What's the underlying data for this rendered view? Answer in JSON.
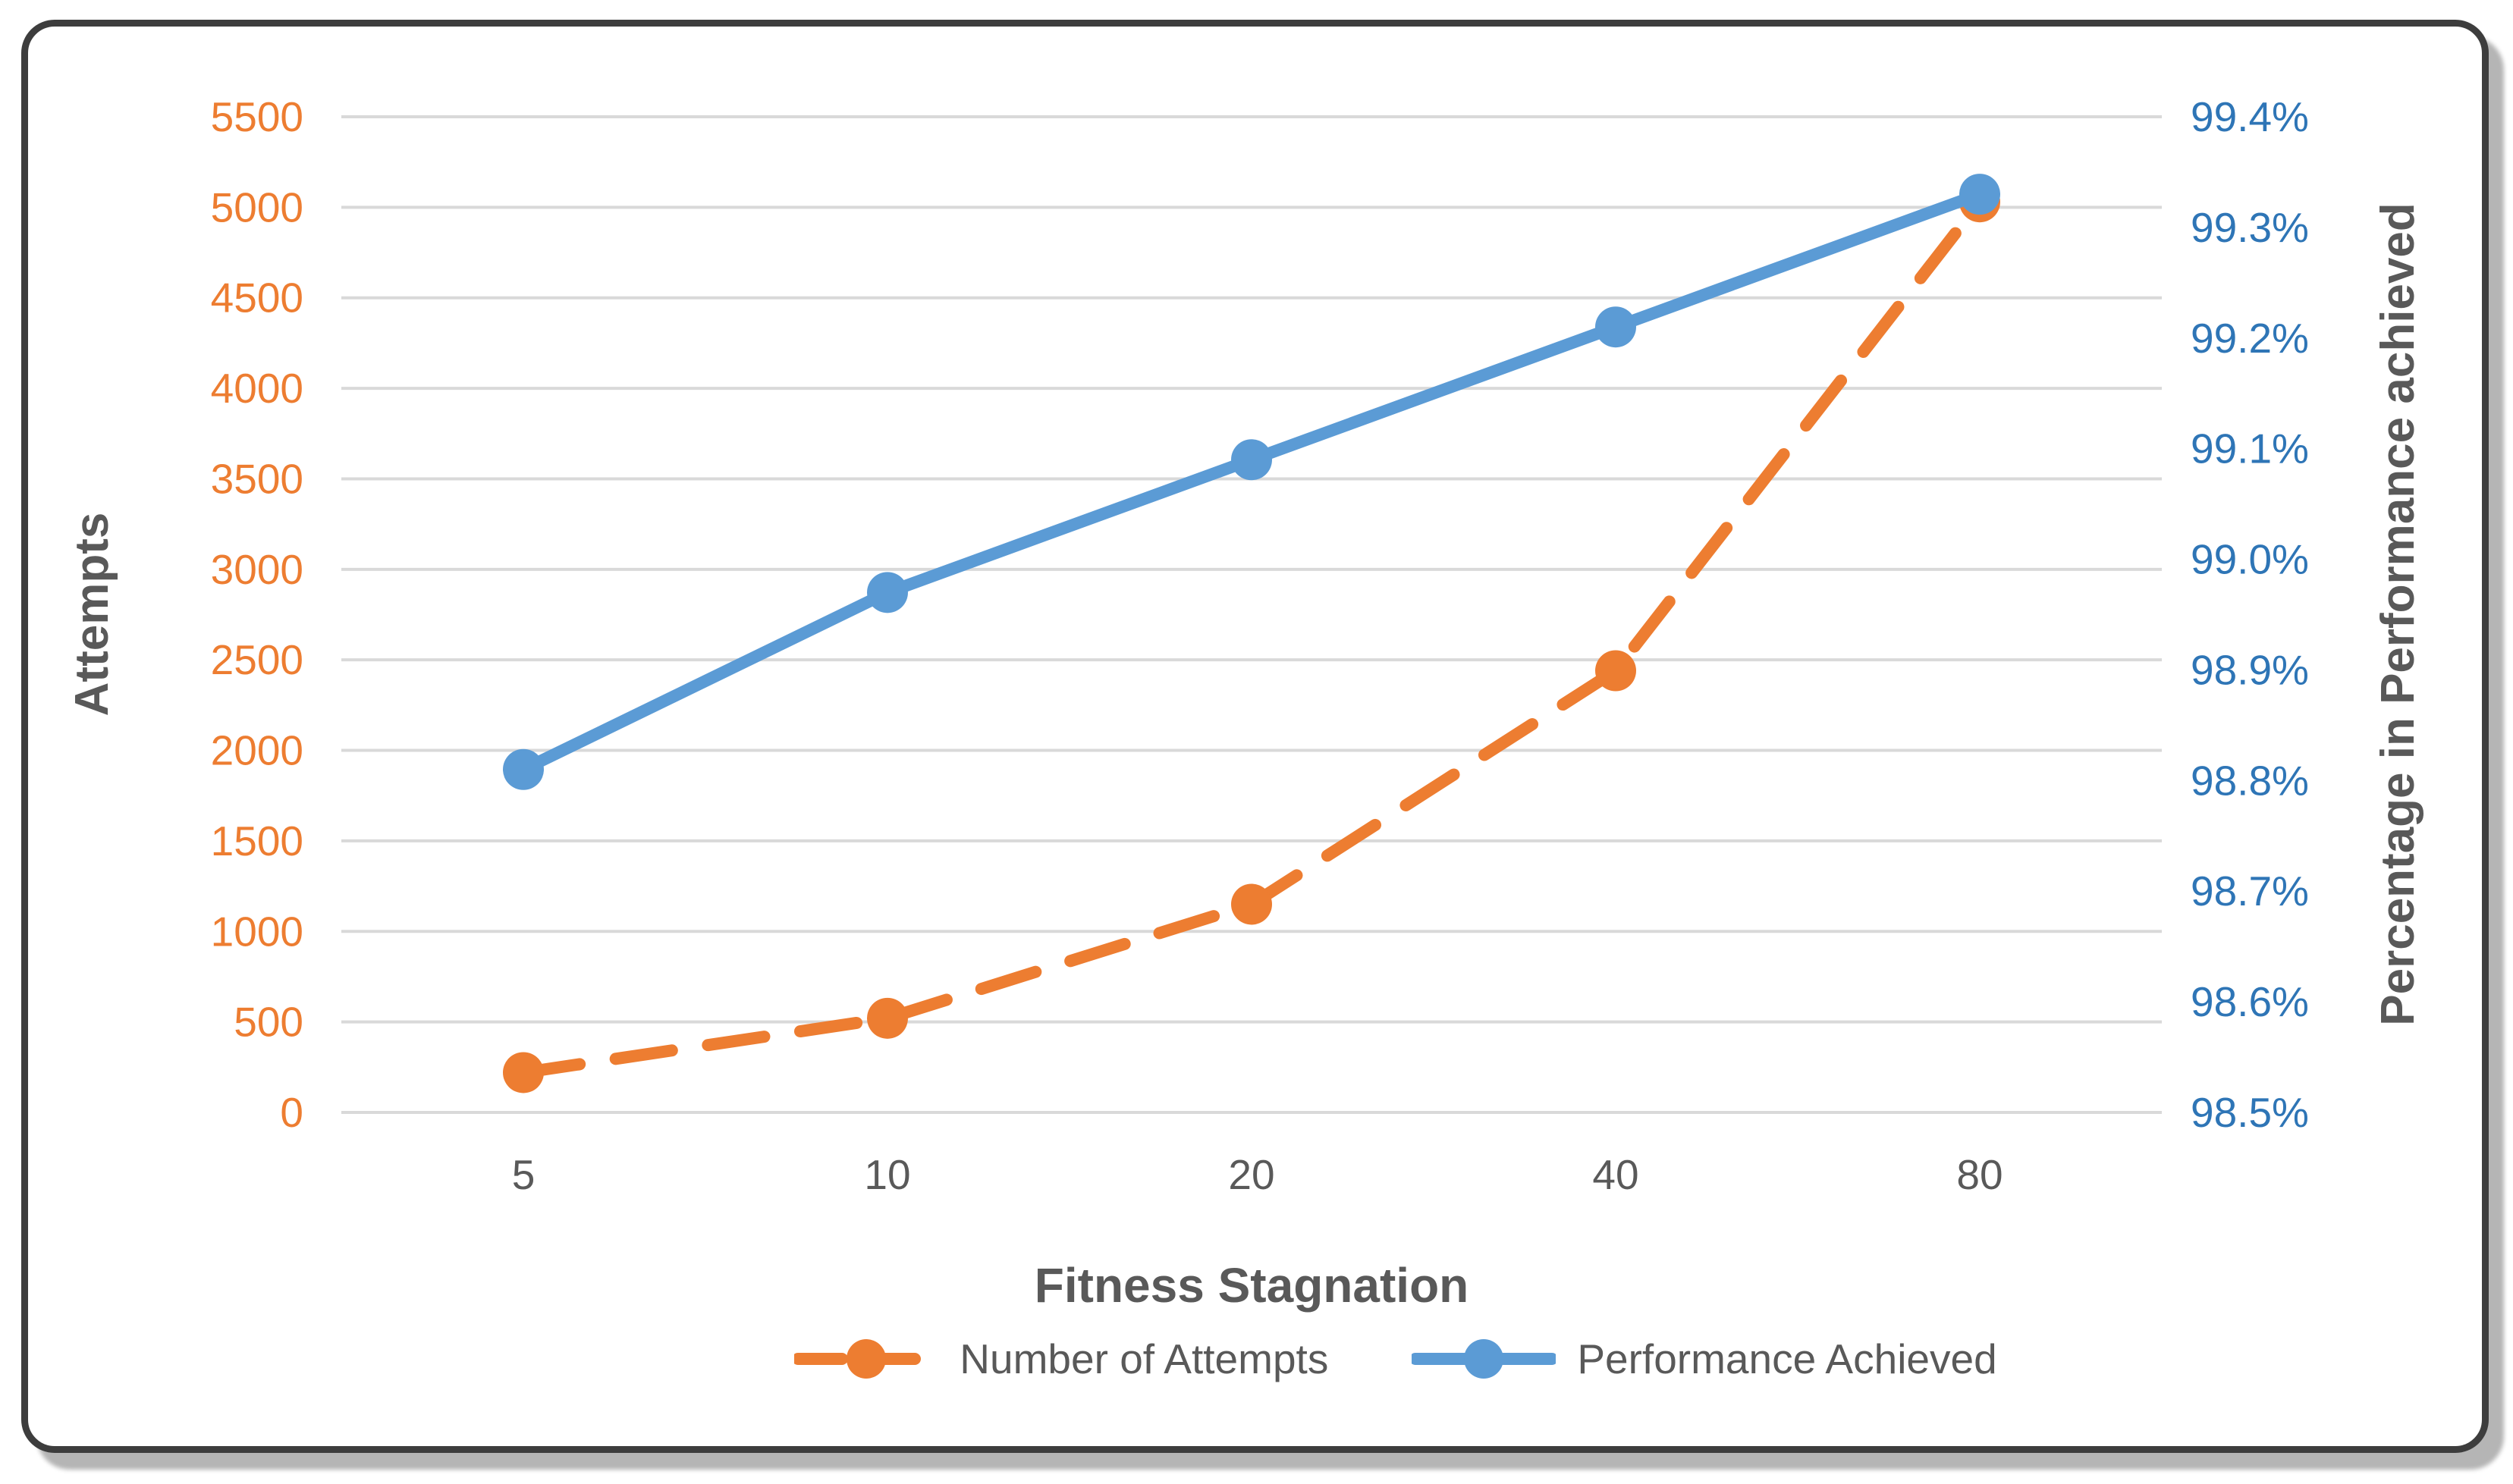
{
  "chart_data": {
    "type": "line",
    "x_categories": [
      "5",
      "10",
      "20",
      "40",
      "80"
    ],
    "xlabel": "Fitness Stagnation",
    "left_axis": {
      "label": "Attempts",
      "min": 0,
      "max": 5500,
      "step": 500,
      "tick_labels": [
        "0",
        "500",
        "1000",
        "1500",
        "2000",
        "2500",
        "3000",
        "3500",
        "4000",
        "4500",
        "5000",
        "5500"
      ],
      "tick_color": "#ED7D31"
    },
    "right_axis": {
      "label": "Percentage in Performance achieved",
      "min": 98.5,
      "max": 99.4,
      "step": 0.1,
      "tick_labels": [
        "98.5%",
        "98.6%",
        "98.7%",
        "98.8%",
        "98.9%",
        "99.0%",
        "99.1%",
        "99.2%",
        "99.3%",
        "99.4%"
      ],
      "tick_color": "#2E75B6"
    },
    "series": [
      {
        "name": "Number of Attempts",
        "axis": "left",
        "color": "#ED7D31",
        "style": "dashed",
        "values": [
          220,
          520,
          1150,
          2440,
          5030
        ]
      },
      {
        "name": "Performance Achieved",
        "axis": "right",
        "color": "#5B9BD5",
        "style": "solid",
        "values": [
          98.81,
          98.97,
          99.09,
          99.21,
          99.33
        ]
      }
    ],
    "gridline_color": "#D9D9D9",
    "text_color": "#595959",
    "legend_position": "bottom",
    "grid": "horizontal-only"
  }
}
